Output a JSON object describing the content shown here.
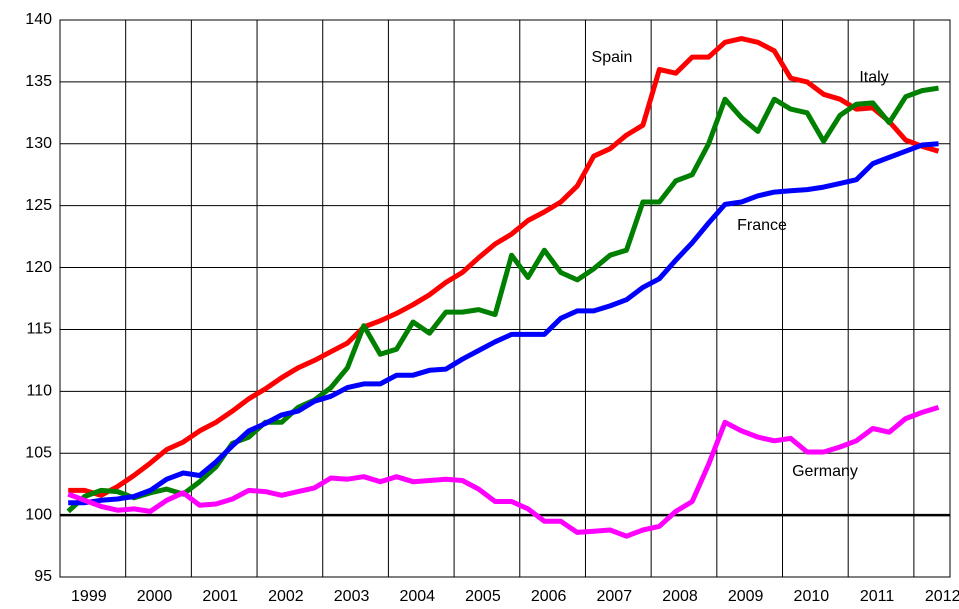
{
  "chart_data": {
    "type": "line",
    "x": [
      1999.125,
      1999.375,
      1999.625,
      1999.875,
      2000.125,
      2000.375,
      2000.625,
      2000.875,
      2001.125,
      2001.375,
      2001.625,
      2001.875,
      2002.125,
      2002.375,
      2002.625,
      2002.875,
      2003.125,
      2003.375,
      2003.625,
      2003.875,
      2004.125,
      2004.375,
      2004.625,
      2004.875,
      2005.125,
      2005.375,
      2005.625,
      2005.875,
      2006.125,
      2006.375,
      2006.625,
      2006.875,
      2007.125,
      2007.375,
      2007.625,
      2007.875,
      2008.125,
      2008.375,
      2008.625,
      2008.875,
      2009.125,
      2009.375,
      2009.625,
      2009.875,
      2010.125,
      2010.375,
      2010.625,
      2010.875,
      2011.125,
      2011.375,
      2011.625,
      2011.875,
      2012.125,
      2012.375
    ],
    "series": [
      {
        "name": "Spain",
        "color": "#ff0000",
        "values": [
          102,
          102,
          101.6,
          102.3,
          103.2,
          104.2,
          105.3,
          105.9,
          106.8,
          107.5,
          108.4,
          109.4,
          110.2,
          111.1,
          111.9,
          112.5,
          113.2,
          113.9,
          115.2,
          115.7,
          116.3,
          117,
          117.8,
          118.8,
          119.6,
          120.8,
          121.9,
          122.7,
          123.8,
          124.5,
          125.3,
          126.6,
          129,
          129.6,
          130.7,
          131.5,
          136,
          135.7,
          137,
          137,
          138.2,
          138.5,
          138.2,
          137.5,
          135.3,
          135,
          134,
          133.6,
          132.8,
          132.9,
          131.8,
          130.3,
          129.8,
          129.4
        ]
      },
      {
        "name": "Italy",
        "color": "#008000",
        "values": [
          100.3,
          101.5,
          102,
          101.9,
          101.4,
          101.8,
          102.1,
          101.7,
          102.7,
          103.9,
          105.8,
          106.3,
          107.5,
          107.5,
          108.7,
          109.3,
          110.3,
          111.9,
          115.3,
          113,
          113.4,
          115.6,
          114.7,
          116.4,
          116.4,
          116.6,
          116.2,
          121,
          119.2,
          121.4,
          119.6,
          119,
          119.9,
          121,
          121.4,
          125.3,
          125.3,
          127,
          127.5,
          130,
          133.6,
          132.1,
          131,
          133.6,
          132.8,
          132.5,
          130.2,
          132.3,
          133.2,
          133.3,
          131.7,
          133.8,
          134.3,
          134.5
        ]
      },
      {
        "name": "France",
        "color": "#0000ff",
        "values": [
          101,
          101,
          101.2,
          101.3,
          101.5,
          102,
          102.9,
          103.4,
          103.2,
          104.3,
          105.6,
          106.8,
          107.4,
          108.1,
          108.4,
          109.2,
          109.6,
          110.3,
          110.6,
          110.6,
          111.3,
          111.3,
          111.7,
          111.8,
          112.6,
          113.3,
          114,
          114.6,
          114.6,
          114.6,
          115.9,
          116.5,
          116.5,
          116.9,
          117.4,
          118.4,
          119.1,
          120.6,
          122,
          123.6,
          125.1,
          125.3,
          125.8,
          126.1,
          126.2,
          126.3,
          126.5,
          126.8,
          127.1,
          128.4,
          128.9,
          129.4,
          129.9,
          130
        ]
      },
      {
        "name": "Germany",
        "color": "#ff00ff",
        "values": [
          101.7,
          101.2,
          100.7,
          100.4,
          100.5,
          100.3,
          101.2,
          101.8,
          100.8,
          100.9,
          101.3,
          102,
          101.9,
          101.6,
          101.9,
          102.2,
          103,
          102.9,
          103.1,
          102.7,
          103.1,
          102.7,
          102.8,
          102.9,
          102.8,
          102.1,
          101.1,
          101.1,
          100.5,
          99.5,
          99.5,
          98.6,
          98.7,
          98.8,
          98.3,
          98.8,
          99.1,
          100.3,
          101.1,
          104.1,
          107.5,
          106.8,
          106.3,
          106,
          106.2,
          105.1,
          105.1,
          105.5,
          106,
          107,
          106.7,
          107.8,
          108.3,
          108.7
        ]
      }
    ],
    "xlim": [
      1999,
      2012.55
    ],
    "xticks": [
      1999,
      2000,
      2001,
      2002,
      2003,
      2004,
      2005,
      2006,
      2007,
      2008,
      2009,
      2010,
      2011,
      2012
    ],
    "ylim": [
      95,
      140
    ],
    "yticks": [
      95,
      100,
      105,
      110,
      115,
      120,
      125,
      130,
      135,
      140
    ],
    "reference_line": 100,
    "grid": true
  }
}
